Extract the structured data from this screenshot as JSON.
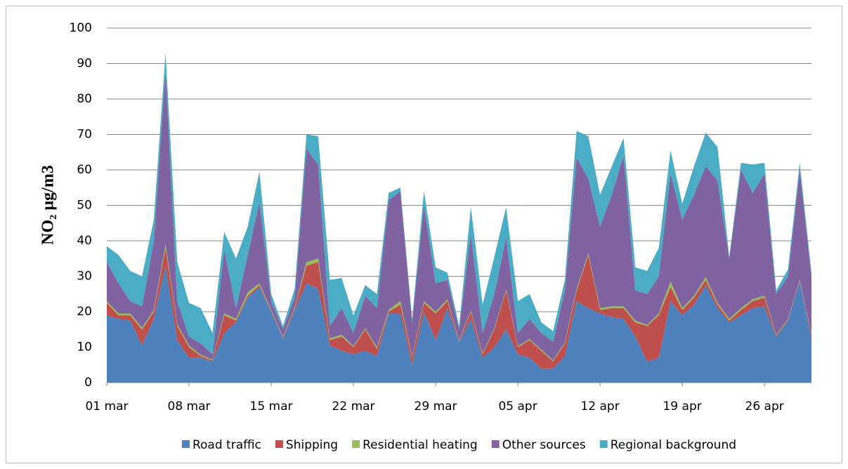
{
  "chart_data": {
    "type": "stacked-area",
    "y_label": "NO₂ µg/m3",
    "categories": [
      "01 mar",
      null,
      null,
      null,
      null,
      null,
      null,
      "08 mar",
      null,
      null,
      null,
      null,
      null,
      null,
      "15 mar",
      null,
      null,
      null,
      null,
      null,
      null,
      "22 mar",
      null,
      null,
      null,
      null,
      null,
      null,
      "29 mar",
      null,
      null,
      null,
      null,
      null,
      null,
      "05 apr",
      null,
      null,
      null,
      null,
      null,
      null,
      "12 apr",
      null,
      null,
      null,
      null,
      null,
      null,
      "19 apr",
      null,
      null,
      null,
      null,
      null,
      null,
      "26 apr",
      null,
      null,
      null,
      null
    ],
    "ylim": [
      0,
      100
    ],
    "yticks": [
      0,
      10,
      20,
      30,
      40,
      50,
      60,
      70,
      80,
      90,
      100
    ],
    "grid": true,
    "legend": "bottom",
    "series": [
      {
        "name": "Road traffic",
        "color": "#4f81bd",
        "values": [
          19,
          18,
          17.5,
          10.5,
          18,
          33,
          12,
          7,
          7,
          6,
          14,
          17,
          24,
          27,
          20,
          12.5,
          20.5,
          28,
          26.5,
          10.5,
          9,
          8,
          9,
          7.5,
          19.5,
          19.5,
          5,
          20,
          12,
          21,
          11.5,
          18,
          7,
          10,
          15,
          8,
          7,
          4,
          4,
          7.5,
          23,
          21,
          19.5,
          18.5,
          18,
          13,
          6,
          7,
          23,
          19,
          22,
          27.5,
          21,
          17,
          19,
          21,
          21.5,
          13,
          17.5,
          28.5,
          12.5
        ]
      },
      {
        "name": "Shipping",
        "color": "#c0504d",
        "values": [
          3.5,
          1,
          1.5,
          4.5,
          2,
          5,
          4,
          3,
          0.5,
          0.3,
          5,
          0.5,
          0.5,
          0.5,
          0.3,
          0.3,
          0.5,
          5,
          7.5,
          1.5,
          4,
          2,
          6,
          2,
          0.5,
          2.5,
          2,
          2.5,
          7.5,
          2,
          0.3,
          2,
          1,
          5,
          11,
          2,
          5,
          5,
          2,
          3.5,
          3,
          15,
          1,
          2.5,
          3,
          4,
          10,
          12,
          4,
          1.5,
          2,
          1.5,
          1,
          0.5,
          1.5,
          2,
          2.5,
          0.3,
          0.3,
          0.3,
          1
        ]
      },
      {
        "name": "Residential heating",
        "color": "#9bbb59",
        "values": [
          0.5,
          0.5,
          0.5,
          0.5,
          0.5,
          1,
          0.5,
          0.5,
          0.3,
          0.2,
          0.5,
          0.5,
          1,
          0.5,
          0.2,
          0.2,
          0.3,
          1,
          1,
          0.5,
          0.5,
          0.3,
          0.3,
          0.5,
          0.5,
          1,
          0.3,
          0.5,
          0.5,
          0.5,
          0.2,
          0.3,
          0.3,
          0.3,
          0.3,
          0.3,
          0.3,
          0.3,
          0.3,
          0.3,
          0.5,
          0.5,
          0.5,
          0.5,
          0.5,
          0.5,
          0.3,
          0.5,
          1.5,
          0.5,
          0.5,
          0.8,
          0.5,
          0.5,
          0.5,
          0.5,
          0.5,
          0.2,
          0.2,
          0.2,
          0.2
        ]
      },
      {
        "name": "Other sources",
        "color": "#8064a2",
        "values": [
          11,
          8.5,
          3.5,
          6,
          19.5,
          49,
          6.5,
          2.5,
          3.2,
          1.5,
          18,
          3,
          10.5,
          23,
          2.5,
          2,
          2.7,
          32,
          26.5,
          3.5,
          7.5,
          3.7,
          9.2,
          11,
          31,
          31,
          9.7,
          27,
          8,
          5.5,
          3,
          21.7,
          5.7,
          9.7,
          14.7,
          3.7,
          5.7,
          4.7,
          5.2,
          14.7,
          37,
          21,
          23,
          31.5,
          42.5,
          8.5,
          8.7,
          10.5,
          30.5,
          25,
          28.5,
          31.2,
          34.5,
          17,
          39,
          30,
          34.5,
          11.5,
          12,
          31,
          16.3
        ]
      },
      {
        "name": "Regional background",
        "color": "#4bacc6",
        "values": [
          4.5,
          8,
          8.5,
          8.5,
          6,
          5,
          11,
          9.5,
          10,
          6,
          5,
          14,
          8,
          8.5,
          2,
          1,
          2.5,
          4,
          8,
          13,
          8.5,
          5,
          3,
          4,
          2,
          1,
          1,
          4,
          4.5,
          2,
          1,
          7.5,
          8,
          10.5,
          8.5,
          9,
          7,
          3,
          3,
          3,
          7.5,
          12,
          9,
          8,
          5,
          6.5,
          6.5,
          8,
          6.5,
          4.5,
          8,
          9.5,
          9.5,
          0.5,
          2,
          8,
          3,
          1,
          2,
          2,
          1
        ]
      }
    ]
  }
}
